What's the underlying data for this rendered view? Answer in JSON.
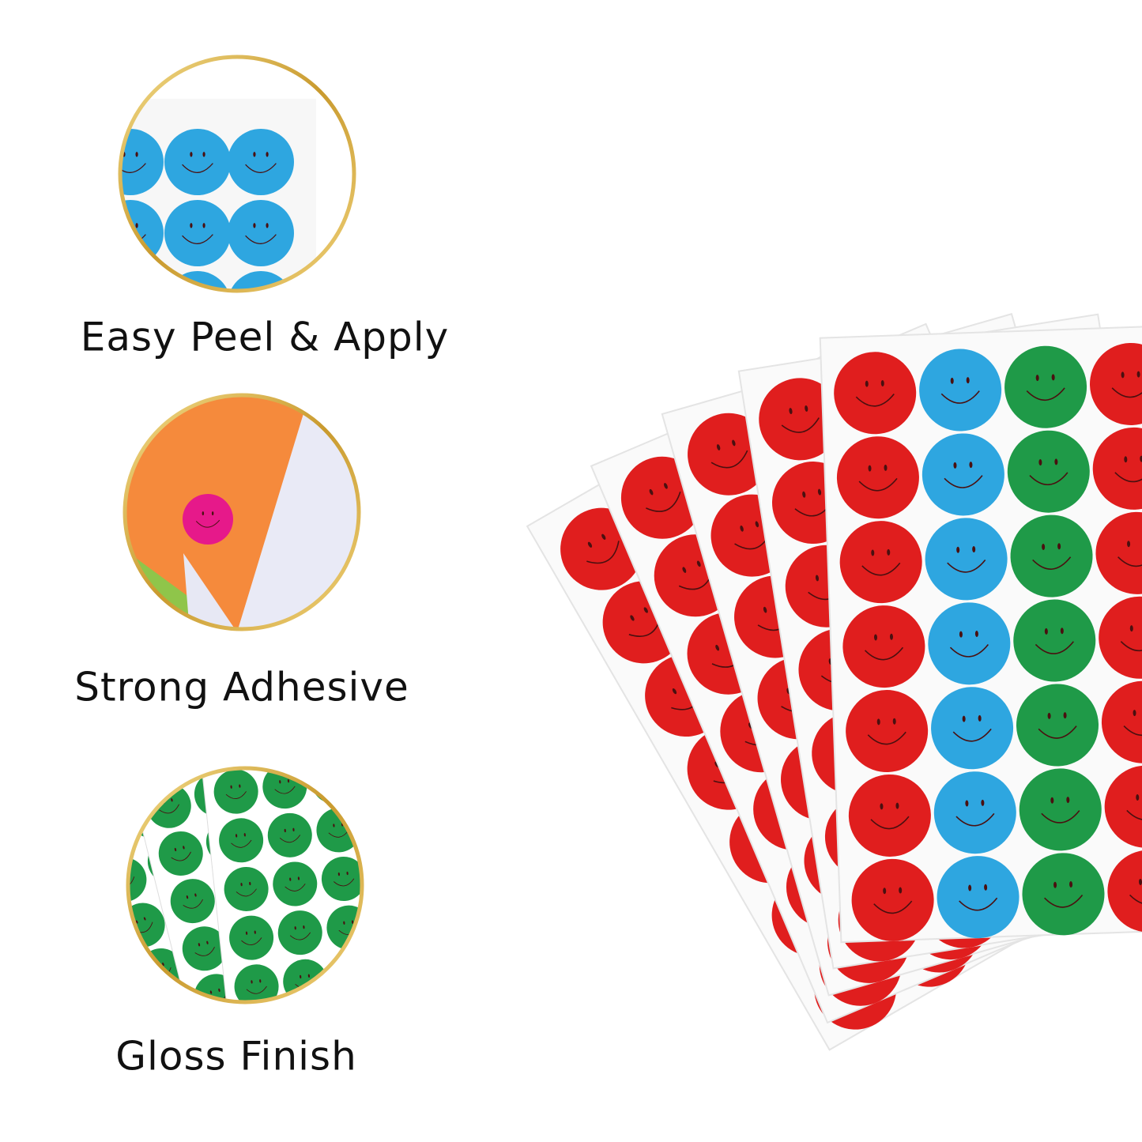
{
  "features": [
    {
      "label": "Easy Peel & Apply"
    },
    {
      "label": "Strong Adhesive"
    },
    {
      "label": "Gloss Finish"
    }
  ]
}
